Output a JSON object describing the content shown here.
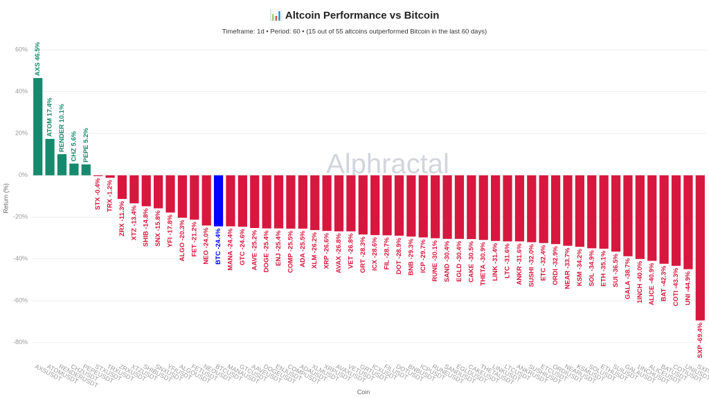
{
  "chart_data": {
    "type": "bar",
    "title": "📊 Altcoin Performance vs Bitcoin",
    "subtitle": "Timeframe: 1d • Period: 60 • (15 out of 55 altcoins outperformed Bitcoin in the last 60 days)",
    "watermark": "Alphractal",
    "x_label": "Coin",
    "y_label": "Return (%)",
    "categories": [
      "AXSUSDT",
      "ATOMUSDT",
      "RENDERUSDT",
      "CHZUSDT",
      "PEPEUSDT",
      "STXUSDT",
      "TRXUSDT",
      "ZRXUSDT",
      "XTZUSDT",
      "SHIBUSDT",
      "SNXUSDT",
      "YFIUSDT",
      "ALGOUSDT",
      "FETUSDT",
      "NEOUSDT",
      "BTCUSDT",
      "MANAUSDT",
      "GTCUSDT",
      "AAVEUSDT",
      "DOGEUSDT",
      "ENJUSDT",
      "COMPUSDT",
      "ADAUSDT",
      "XLMUSDT",
      "XRPUSDT",
      "AVAXUSDT",
      "VETUSDT",
      "GRTUSDT",
      "ICXUSDT",
      "FILUSDT",
      "DOTUSDT",
      "BNBUSDT",
      "ICPUSDT",
      "RUNEUSDT",
      "SANDUSDT",
      "EGLDUSDT",
      "CAKEUSDT",
      "THETAUSDT",
      "LINKUSDT",
      "LTCUSDT",
      "ANKRUSDT",
      "SUSHIUSDT",
      "ETCUSDT",
      "ORDIUSDT",
      "NEARUSDT",
      "KSMUSDT",
      "SOLUSDT",
      "ETHUSDT",
      "SUIUSDT",
      "GALAUSDT",
      "1INCHUSDT",
      "ALICEUSDT",
      "BATUSDT",
      "COTIUSDT",
      "UNIUSDT",
      "SXPUSDT"
    ],
    "values": [
      46.5,
      17.4,
      10.1,
      5.6,
      5.2,
      -0.4,
      -1.2,
      -11.3,
      -13.4,
      -14.8,
      -15.8,
      -17.8,
      -20.3,
      -21.2,
      -24.0,
      -24.4,
      -24.4,
      -24.6,
      -25.2,
      -25.4,
      -25.4,
      -25.5,
      -25.5,
      -26.2,
      -26.6,
      -26.8,
      -26.8,
      -28.3,
      -28.6,
      -28.7,
      -28.9,
      -29.3,
      -29.7,
      -30.1,
      -30.4,
      -30.4,
      -30.5,
      -30.9,
      -31.4,
      -31.6,
      -31.6,
      -32.0,
      -32.4,
      -32.9,
      -33.7,
      -34.2,
      -34.9,
      -35.1,
      -36.5,
      -38.7,
      -40.0,
      -40.9,
      -42.3,
      -43.3,
      -44.9,
      -69.4
    ],
    "value_labels": [
      "AXS 46.5%",
      "ATOM 17.4%",
      "RENDER 10.1%",
      "CHZ 5.6%",
      "PEPE 5.2%",
      "STX -0.4%",
      "TRX -1.2%",
      "ZRX -11.3%",
      "XTZ -13.4%",
      "SHIB -14.8%",
      "SNX -15.8%",
      "YFI -17.8%",
      "ALGO -20.3%",
      "FET -21.2%",
      "NEO -24.0%",
      "BTC -24.4%",
      "MANA -24.4%",
      "GTC -24.6%",
      "AAVE -25.2%",
      "DOGE -25.4%",
      "ENJ -25.4%",
      "COMP -25.5%",
      "ADA -25.5%",
      "XLM -26.2%",
      "XRP -26.6%",
      "AVAX -26.8%",
      "VET -26.8%",
      "GRT -28.3%",
      "ICX -28.6%",
      "FIL -28.7%",
      "DOT -28.9%",
      "BNB -29.3%",
      "ICP -29.7%",
      "RUNE -30.1%",
      "SAND -30.4%",
      "EGLD -30.4%",
      "CAKE -30.5%",
      "THETA -30.9%",
      "LINK -31.4%",
      "LTC -31.6%",
      "ANKR -31.6%",
      "SUSHI -32.0%",
      "ETC -32.4%",
      "ORDI -32.9%",
      "NEAR -33.7%",
      "KSM -34.2%",
      "SOL -34.9%",
      "ETH -35.1%",
      "SUI -36.5%",
      "GALA -38.7%",
      "1INCH -40.0%",
      "ALICE -40.9%",
      "BAT -42.3%",
      "COTI -43.3%",
      "UNI -44.9%",
      "SXP -69.4%"
    ],
    "colors": {
      "positive": "#168a6c",
      "negative": "#d8173e",
      "highlight": "#0000ff"
    },
    "highlight": "BTCUSDT",
    "ylim": [
      -86,
      64
    ],
    "yticks": [
      {
        "value": 60,
        "label": "60%"
      },
      {
        "value": 40,
        "label": "40%"
      },
      {
        "value": 20,
        "label": "20%"
      },
      {
        "value": 0,
        "label": "0%"
      },
      {
        "value": -20,
        "label": "-20%"
      },
      {
        "value": -40,
        "label": "-40%"
      },
      {
        "value": -60,
        "label": "-60%"
      },
      {
        "value": -80,
        "label": "-80%"
      }
    ],
    "grid": true
  }
}
